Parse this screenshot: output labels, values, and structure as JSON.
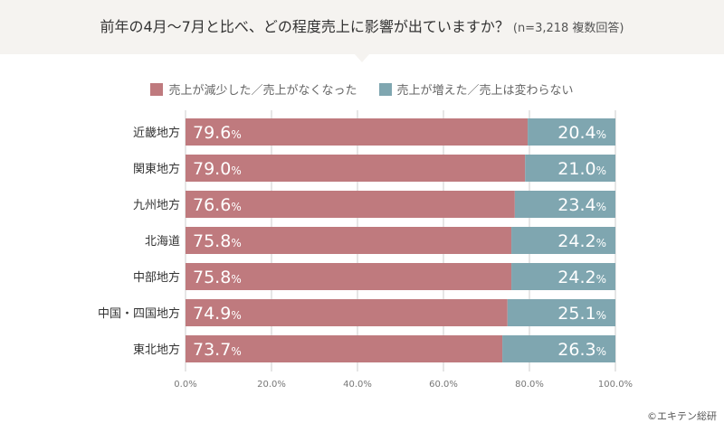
{
  "header": {
    "title": "前年の4月〜7月と比べ、どの程度売上に影響が出ていますか？",
    "subtitle": "(n=3,218 複数回答)"
  },
  "chart_data": {
    "type": "bar",
    "orientation": "horizontal",
    "stacked": true,
    "title": "前年の4月〜7月と比べ、どの程度売上に影響が出ていますか？",
    "subtitle": "(n=3,218 複数回答)",
    "categories": [
      "近畿地方",
      "関東地方",
      "九州地方",
      "北海道",
      "中部地方",
      "中国・四国地方",
      "東北地方"
    ],
    "series": [
      {
        "name": "売上が減少した／売上がなくなった",
        "color": "#bf7a7e",
        "values": [
          79.6,
          79.0,
          76.6,
          75.8,
          75.8,
          74.9,
          73.7
        ]
      },
      {
        "name": "売上が増えた／売上は変わらない",
        "color": "#7fa6b0",
        "values": [
          20.4,
          21.0,
          23.4,
          24.2,
          24.2,
          25.1,
          26.3
        ]
      }
    ],
    "xlim": [
      0,
      100
    ],
    "xticks": [
      "0.0%",
      "20.0%",
      "40.0%",
      "60.0%",
      "80.0%",
      "100.0%"
    ],
    "xtick_values": [
      0,
      20,
      40,
      60,
      80,
      100
    ],
    "grid": true,
    "legend_position": "top-center",
    "unit": "%"
  },
  "copyright": "©エキテン総研"
}
